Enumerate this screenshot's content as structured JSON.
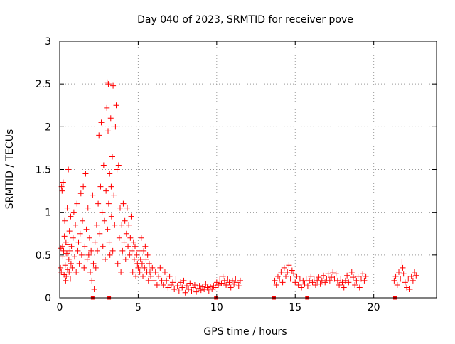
{
  "chart_data": {
    "type": "scatter",
    "title": "Day 040 of 2023, SRMTID for receiver pove",
    "xlabel": "GPS time / hours",
    "ylabel": "SRMTID / TECUs",
    "xlim": [
      0,
      24
    ],
    "ylim": [
      0,
      3
    ],
    "xticks": [
      0,
      5,
      10,
      15,
      20
    ],
    "yticks": [
      0,
      0.5,
      1,
      1.5,
      2,
      2.5,
      3
    ],
    "xtick_labels": [
      "0",
      "5",
      "10",
      "15",
      "20"
    ],
    "ytick_labels": [
      "0",
      "0.5",
      "1",
      "1.5",
      "2",
      "2.5",
      "3"
    ],
    "grid": true,
    "marker": "+",
    "color": "#ff0000",
    "series": [
      {
        "name": "SRMTID",
        "points": [
          [
            0.0,
            0.42
          ],
          [
            0.05,
            0.35
          ],
          [
            0.08,
            0.58
          ],
          [
            0.1,
            0.3
          ],
          [
            0.12,
            1.3
          ],
          [
            0.15,
            1.25
          ],
          [
            0.18,
            0.6
          ],
          [
            0.2,
            0.48
          ],
          [
            0.22,
            1.35
          ],
          [
            0.25,
            0.55
          ],
          [
            0.28,
            0.27
          ],
          [
            0.3,
            0.72
          ],
          [
            0.32,
            0.9
          ],
          [
            0.35,
            0.38
          ],
          [
            0.38,
            0.2
          ],
          [
            0.4,
            0.65
          ],
          [
            0.42,
            0.25
          ],
          [
            0.45,
            0.52
          ],
          [
            0.48,
            1.05
          ],
          [
            0.5,
            0.33
          ],
          [
            0.52,
            0.62
          ],
          [
            0.55,
            1.5
          ],
          [
            0.58,
            0.45
          ],
          [
            0.6,
            0.3
          ],
          [
            0.62,
            0.78
          ],
          [
            0.65,
            0.55
          ],
          [
            0.68,
            0.22
          ],
          [
            0.7,
            0.95
          ],
          [
            0.72,
            0.4
          ],
          [
            0.75,
            0.6
          ],
          [
            0.8,
            0.35
          ],
          [
            0.85,
            0.7
          ],
          [
            0.9,
            1.0
          ],
          [
            0.95,
            0.48
          ],
          [
            1.0,
            0.85
          ],
          [
            1.05,
            0.3
          ],
          [
            1.1,
            1.1
          ],
          [
            1.15,
            0.55
          ],
          [
            1.2,
            0.65
          ],
          [
            1.25,
            0.4
          ],
          [
            1.3,
            0.75
          ],
          [
            1.35,
            1.22
          ],
          [
            1.4,
            0.5
          ],
          [
            1.45,
            0.9
          ],
          [
            1.5,
            1.3
          ],
          [
            1.55,
            0.35
          ],
          [
            1.6,
            0.6
          ],
          [
            1.65,
            1.45
          ],
          [
            1.7,
            0.8
          ],
          [
            1.75,
            0.45
          ],
          [
            1.8,
            1.05
          ],
          [
            1.85,
            0.5
          ],
          [
            1.9,
            0.7
          ],
          [
            1.95,
            0.3
          ],
          [
            2.0,
            0.55
          ],
          [
            2.05,
            0.2
          ],
          [
            2.1,
            1.2
          ],
          [
            2.15,
            0.4
          ],
          [
            2.2,
            0.1
          ],
          [
            2.25,
            0.65
          ],
          [
            2.3,
            0.35
          ],
          [
            2.35,
            0.85
          ],
          [
            2.4,
            0.55
          ],
          [
            2.45,
            1.1
          ],
          [
            2.5,
            1.9
          ],
          [
            2.55,
            0.75
          ],
          [
            2.6,
            1.3
          ],
          [
            2.65,
            2.05
          ],
          [
            2.7,
            1.0
          ],
          [
            2.75,
            0.6
          ],
          [
            2.8,
            1.55
          ],
          [
            2.85,
            0.9
          ],
          [
            2.9,
            0.45
          ],
          [
            2.95,
            1.25
          ],
          [
            3.0,
            2.22
          ],
          [
            3.02,
            2.52
          ],
          [
            3.05,
            0.8
          ],
          [
            3.08,
            1.95
          ],
          [
            3.1,
            2.5
          ],
          [
            3.12,
            1.1
          ],
          [
            3.15,
            0.65
          ],
          [
            3.18,
            1.45
          ],
          [
            3.2,
            0.5
          ],
          [
            3.25,
            2.1
          ],
          [
            3.28,
            1.3
          ],
          [
            3.3,
            0.95
          ],
          [
            3.35,
            1.65
          ],
          [
            3.38,
            0.55
          ],
          [
            3.4,
            2.48
          ],
          [
            3.45,
            1.2
          ],
          [
            3.5,
            0.85
          ],
          [
            3.55,
            2.0
          ],
          [
            3.6,
            2.25
          ],
          [
            3.65,
            1.5
          ],
          [
            3.7,
            0.4
          ],
          [
            3.75,
            1.55
          ],
          [
            3.8,
            0.7
          ],
          [
            3.85,
            1.05
          ],
          [
            3.9,
            0.3
          ],
          [
            3.95,
            0.85
          ],
          [
            4.0,
            0.55
          ],
          [
            4.05,
            1.1
          ],
          [
            4.1,
            0.65
          ],
          [
            4.15,
            0.9
          ],
          [
            4.2,
            0.45
          ],
          [
            4.25,
            0.75
          ],
          [
            4.3,
            1.05
          ],
          [
            4.35,
            0.6
          ],
          [
            4.4,
            0.85
          ],
          [
            4.45,
            0.5
          ],
          [
            4.5,
            0.7
          ],
          [
            4.55,
            0.95
          ],
          [
            4.6,
            0.55
          ],
          [
            4.65,
            0.3
          ],
          [
            4.7,
            0.65
          ],
          [
            4.75,
            0.45
          ],
          [
            4.8,
            0.6
          ],
          [
            4.85,
            0.25
          ],
          [
            4.9,
            0.5
          ],
          [
            4.95,
            0.4
          ],
          [
            5.0,
            0.35
          ],
          [
            5.05,
            0.55
          ],
          [
            5.1,
            0.3
          ],
          [
            5.15,
            0.45
          ],
          [
            5.2,
            0.7
          ],
          [
            5.25,
            0.4
          ],
          [
            5.3,
            0.25
          ],
          [
            5.35,
            0.55
          ],
          [
            5.4,
            0.35
          ],
          [
            5.45,
            0.6
          ],
          [
            5.5,
            0.45
          ],
          [
            5.55,
            0.3
          ],
          [
            5.6,
            0.5
          ],
          [
            5.65,
            0.2
          ],
          [
            5.7,
            0.4
          ],
          [
            5.75,
            0.3
          ],
          [
            5.8,
            0.25
          ],
          [
            5.9,
            0.35
          ],
          [
            6.0,
            0.2
          ],
          [
            6.1,
            0.3
          ],
          [
            6.2,
            0.15
          ],
          [
            6.3,
            0.25
          ],
          [
            6.4,
            0.35
          ],
          [
            6.5,
            0.2
          ],
          [
            6.6,
            0.15
          ],
          [
            6.7,
            0.3
          ],
          [
            6.8,
            0.2
          ],
          [
            6.9,
            0.12
          ],
          [
            7.0,
            0.25
          ],
          [
            7.1,
            0.15
          ],
          [
            7.2,
            0.18
          ],
          [
            7.3,
            0.1
          ],
          [
            7.4,
            0.22
          ],
          [
            7.5,
            0.14
          ],
          [
            7.6,
            0.08
          ],
          [
            7.7,
            0.18
          ],
          [
            7.8,
            0.12
          ],
          [
            7.9,
            0.2
          ],
          [
            8.0,
            0.06
          ],
          [
            8.1,
            0.14
          ],
          [
            8.2,
            0.1
          ],
          [
            8.3,
            0.17
          ],
          [
            8.4,
            0.08
          ],
          [
            8.5,
            0.12
          ],
          [
            8.6,
            0.15
          ],
          [
            8.7,
            0.07
          ],
          [
            8.8,
            0.11
          ],
          [
            8.9,
            0.14
          ],
          [
            9.0,
            0.09
          ],
          [
            9.1,
            0.13
          ],
          [
            9.2,
            0.1
          ],
          [
            9.3,
            0.16
          ],
          [
            9.4,
            0.12
          ],
          [
            9.5,
            0.08
          ],
          [
            9.6,
            0.13
          ],
          [
            9.7,
            0.1
          ],
          [
            9.8,
            0.14
          ],
          [
            9.9,
            0.12
          ],
          [
            10.0,
            0.18
          ],
          [
            10.1,
            0.15
          ],
          [
            10.2,
            0.22
          ],
          [
            10.3,
            0.17
          ],
          [
            10.4,
            0.25
          ],
          [
            10.5,
            0.2
          ],
          [
            10.6,
            0.15
          ],
          [
            10.7,
            0.22
          ],
          [
            10.8,
            0.18
          ],
          [
            10.9,
            0.12
          ],
          [
            11.0,
            0.2
          ],
          [
            11.1,
            0.16
          ],
          [
            11.2,
            0.22
          ],
          [
            11.3,
            0.18
          ],
          [
            11.4,
            0.14
          ],
          [
            11.5,
            0.2
          ],
          [
            13.7,
            0.2
          ],
          [
            13.8,
            0.15
          ],
          [
            13.9,
            0.25
          ],
          [
            14.0,
            0.22
          ],
          [
            14.1,
            0.3
          ],
          [
            14.2,
            0.18
          ],
          [
            14.3,
            0.35
          ],
          [
            14.4,
            0.25
          ],
          [
            14.5,
            0.3
          ],
          [
            14.6,
            0.38
          ],
          [
            14.7,
            0.22
          ],
          [
            14.8,
            0.32
          ],
          [
            14.9,
            0.28
          ],
          [
            15.0,
            0.18
          ],
          [
            15.1,
            0.25
          ],
          [
            15.2,
            0.15
          ],
          [
            15.3,
            0.22
          ],
          [
            15.4,
            0.12
          ],
          [
            15.5,
            0.2
          ],
          [
            15.6,
            0.16
          ],
          [
            15.7,
            0.22
          ],
          [
            15.8,
            0.14
          ],
          [
            15.9,
            0.2
          ],
          [
            16.0,
            0.25
          ],
          [
            16.1,
            0.18
          ],
          [
            16.2,
            0.22
          ],
          [
            16.3,
            0.15
          ],
          [
            16.4,
            0.2
          ],
          [
            16.5,
            0.24
          ],
          [
            16.6,
            0.16
          ],
          [
            16.7,
            0.2
          ],
          [
            16.8,
            0.26
          ],
          [
            16.9,
            0.18
          ],
          [
            17.0,
            0.22
          ],
          [
            17.1,
            0.28
          ],
          [
            17.2,
            0.2
          ],
          [
            17.3,
            0.24
          ],
          [
            17.4,
            0.3
          ],
          [
            17.5,
            0.22
          ],
          [
            17.6,
            0.28
          ],
          [
            17.7,
            0.2
          ],
          [
            17.8,
            0.15
          ],
          [
            17.9,
            0.22
          ],
          [
            18.0,
            0.18
          ],
          [
            18.1,
            0.12
          ],
          [
            18.2,
            0.2
          ],
          [
            18.3,
            0.26
          ],
          [
            18.4,
            0.18
          ],
          [
            18.5,
            0.22
          ],
          [
            18.6,
            0.3
          ],
          [
            18.7,
            0.24
          ],
          [
            18.8,
            0.15
          ],
          [
            18.9,
            0.2
          ],
          [
            19.0,
            0.25
          ],
          [
            19.1,
            0.12
          ],
          [
            19.2,
            0.22
          ],
          [
            19.3,
            0.28
          ],
          [
            19.4,
            0.2
          ],
          [
            19.5,
            0.25
          ],
          [
            21.3,
            0.2
          ],
          [
            21.4,
            0.25
          ],
          [
            21.5,
            0.15
          ],
          [
            21.6,
            0.3
          ],
          [
            21.7,
            0.22
          ],
          [
            21.8,
            0.42
          ],
          [
            21.85,
            0.35
          ],
          [
            21.9,
            0.28
          ],
          [
            22.0,
            0.18
          ],
          [
            22.1,
            0.12
          ],
          [
            22.2,
            0.22
          ],
          [
            22.3,
            0.1
          ],
          [
            22.4,
            0.25
          ],
          [
            22.5,
            0.2
          ],
          [
            22.6,
            0.3
          ],
          [
            22.7,
            0.26
          ]
        ]
      }
    ],
    "baseline_markers": [
      2.1,
      3.15,
      9.95,
      13.65,
      15.75,
      21.35
    ]
  }
}
